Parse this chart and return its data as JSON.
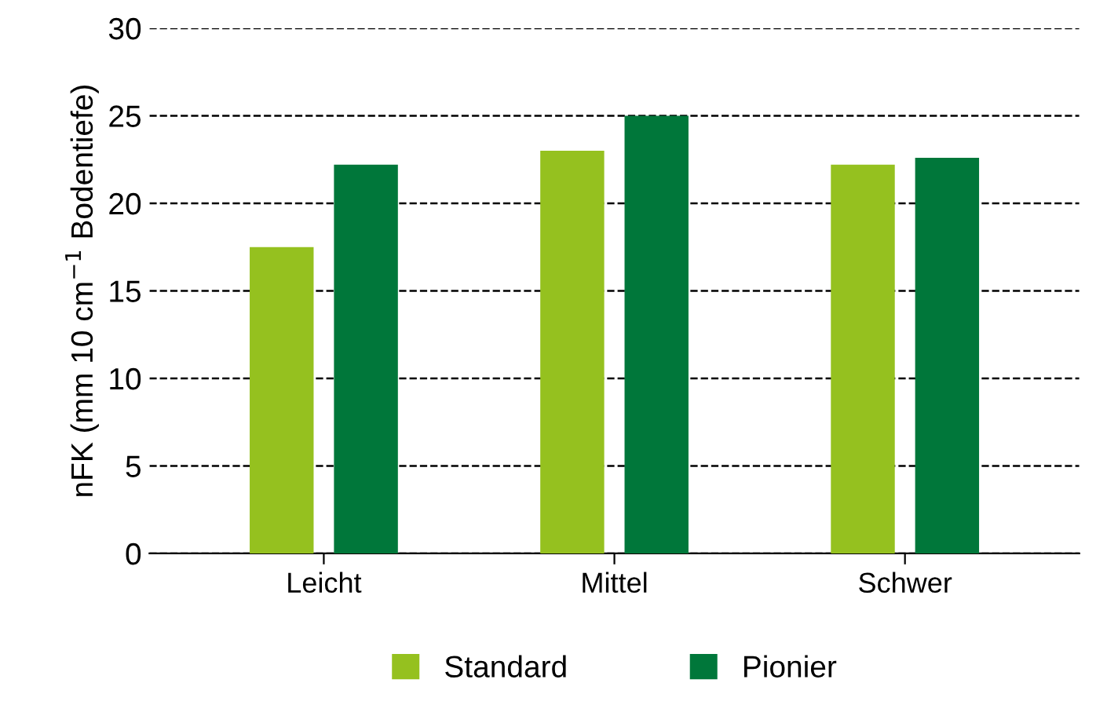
{
  "chart_data": {
    "type": "bar",
    "ylabel": "nFK (mm 10 cm$^{−1}$ Bodentiefe)",
    "categories": [
      "Leicht",
      "Mittel",
      "Schwer"
    ],
    "series": [
      {
        "name": "Standard",
        "color": "#95c11f",
        "values": [
          17.5,
          23,
          22.2
        ]
      },
      {
        "name": "Pionier",
        "color": "#00773a",
        "values": [
          22.2,
          25,
          22.6
        ]
      }
    ],
    "ylim": [
      0,
      30
    ],
    "yticks": [
      0,
      5,
      10,
      15,
      20,
      25,
      30
    ],
    "grid": "y",
    "line_style": "dashed",
    "legend": "bottom"
  }
}
